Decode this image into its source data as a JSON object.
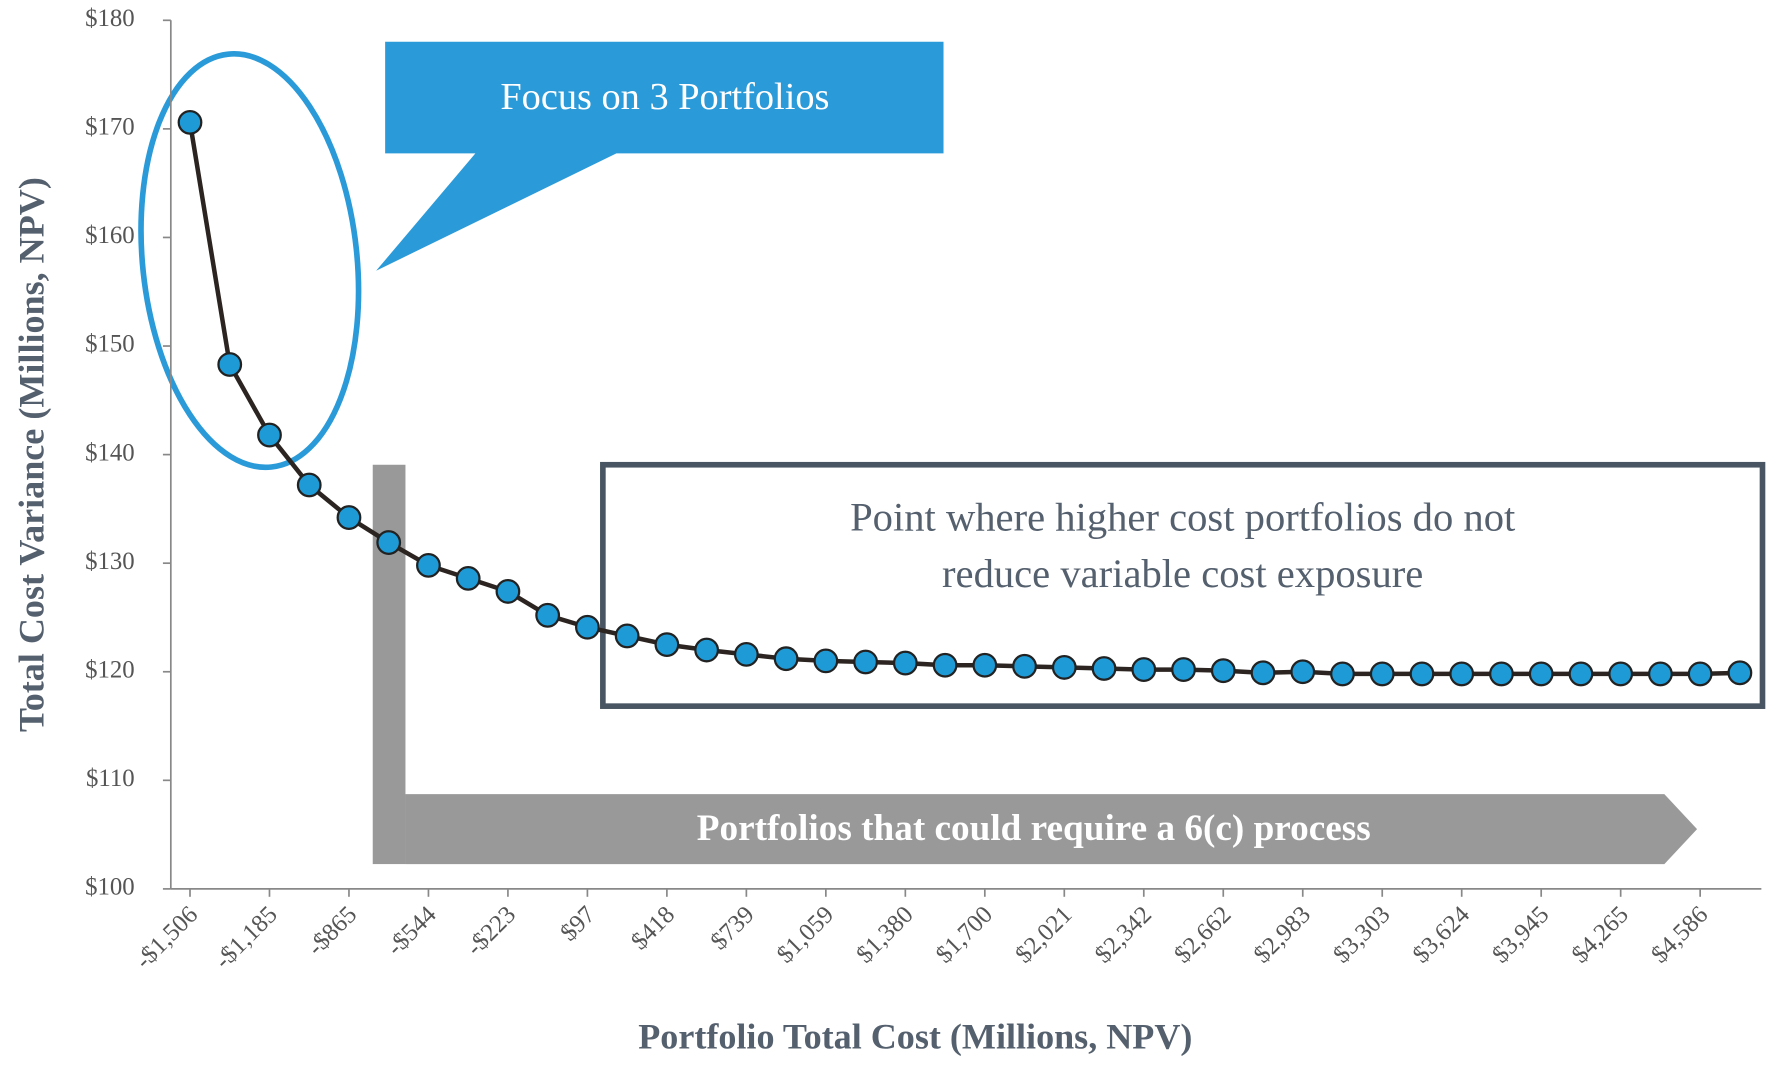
{
  "chart_data": {
    "type": "line",
    "x_label": "Portfolio Total Cost (Millions, NPV)",
    "y_label": "Total Cost Variance (Millions, NPV)",
    "categories": [
      "-$1,506",
      null,
      "-$1,185",
      null,
      "-$865",
      null,
      "-$544",
      null,
      "-$223",
      null,
      "$97",
      null,
      "$418",
      null,
      "$739",
      null,
      "$1,059",
      null,
      "$1,380",
      null,
      "$1,700",
      null,
      "$2,021",
      null,
      "$2,342",
      null,
      "$2,662",
      null,
      "$2,983",
      null,
      "$3,303",
      null,
      "$3,624",
      null,
      "$3,945",
      null,
      "$4,265",
      null,
      "$4,586",
      null
    ],
    "series": [
      {
        "name": "Portfolios",
        "color": "#1e9bd7",
        "line_color": "#2b2420",
        "values": [
          170.6,
          148.3,
          141.8,
          137.2,
          134.2,
          131.9,
          129.8,
          128.6,
          127.4,
          125.2,
          124.1,
          123.3,
          122.5,
          122.0,
          121.6,
          121.2,
          121.0,
          120.9,
          120.8,
          120.6,
          120.6,
          120.5,
          120.4,
          120.3,
          120.2,
          120.2,
          120.1,
          119.9,
          120.0,
          119.8,
          119.8,
          119.8,
          119.8,
          119.8,
          119.8,
          119.8,
          119.8,
          119.8,
          119.8,
          119.9
        ]
      }
    ],
    "ylim": [
      100,
      180
    ],
    "yticks": [
      {
        "value": 100,
        "label": "$100"
      },
      {
        "value": 110,
        "label": "$110"
      },
      {
        "value": 120,
        "label": "$120"
      },
      {
        "value": 130,
        "label": "$130"
      },
      {
        "value": 140,
        "label": "$140"
      },
      {
        "value": 150,
        "label": "$150"
      },
      {
        "value": 160,
        "label": "$160"
      },
      {
        "value": 170,
        "label": "$170"
      },
      {
        "value": 180,
        "label": "$180"
      }
    ],
    "annotations": {
      "focus": "Focus on 3 Portfolios",
      "plateau": [
        "Point where higher cost portfolios do not",
        "reduce variable cost exposure"
      ],
      "process": "Portfolios that could require a 6(c) process"
    }
  }
}
